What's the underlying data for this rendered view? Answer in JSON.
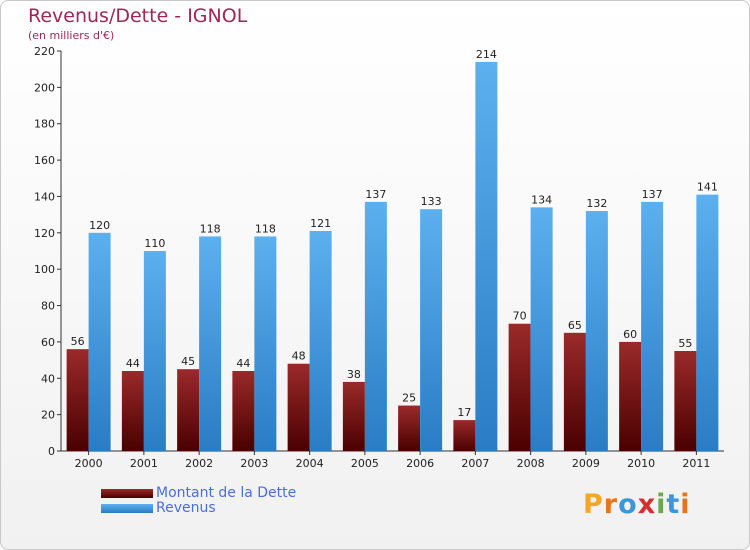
{
  "title": "Revenus/Dette - IGNOL",
  "subtitle": "(en milliers d'€)",
  "colors": {
    "dette": "#6e0000",
    "revenus": "#3d96dc",
    "title": "#a0265a",
    "legend_text": "#4a6de0"
  },
  "legend": [
    {
      "label": "Montant de la Dette",
      "color": "#6e0000"
    },
    {
      "label": "Revenus",
      "color": "#3d96dc"
    }
  ],
  "logo": {
    "text": "Proxiti",
    "letter_colors": [
      "#f5a623",
      "#e8741a",
      "#3d96dc",
      "#d32f2f",
      "#6aa84f",
      "#3d96dc",
      "#e8741a"
    ]
  },
  "chart_data": {
    "type": "bar",
    "title": "Revenus/Dette - IGNOL",
    "subtitle": "(en milliers d'€)",
    "categories": [
      "2000",
      "2001",
      "2002",
      "2003",
      "2004",
      "2005",
      "2006",
      "2007",
      "2008",
      "2009",
      "2010",
      "2011"
    ],
    "series": [
      {
        "name": "Montant de la Dette",
        "values": [
          56,
          44,
          45,
          44,
          48,
          38,
          25,
          17,
          70,
          65,
          60,
          55
        ]
      },
      {
        "name": "Revenus",
        "values": [
          120,
          110,
          118,
          118,
          121,
          137,
          133,
          214,
          134,
          132,
          137,
          141
        ]
      }
    ],
    "ylim": [
      0,
      220
    ],
    "yticks": [
      0,
      20,
      40,
      60,
      80,
      100,
      120,
      140,
      160,
      180,
      200,
      220
    ],
    "grid": false,
    "legend_position": "bottom-left"
  }
}
